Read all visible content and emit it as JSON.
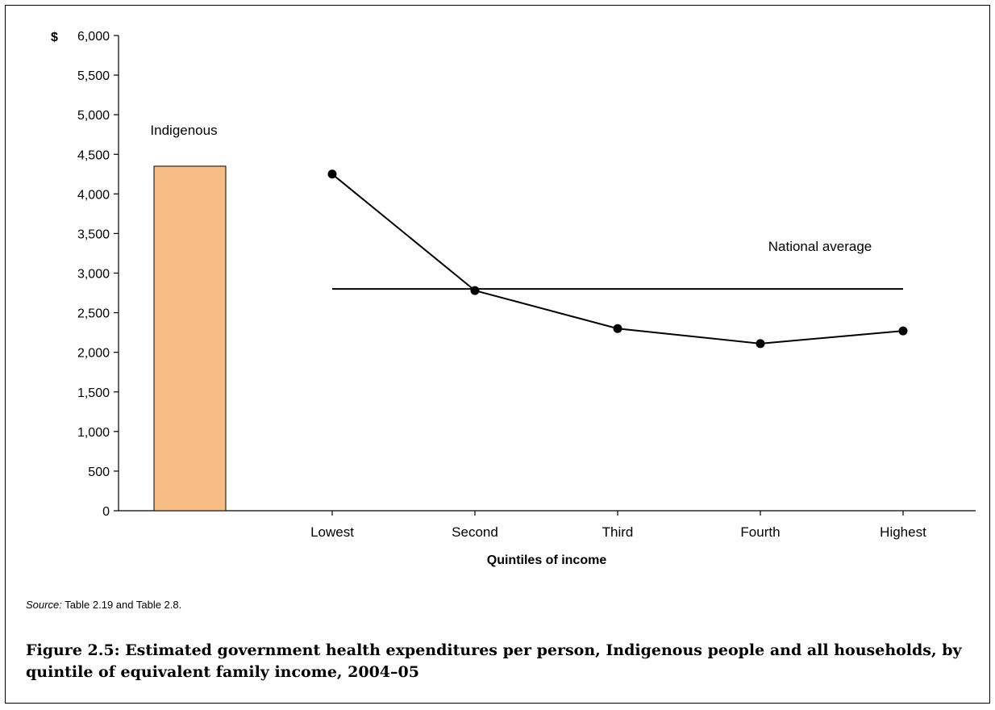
{
  "chart_data": {
    "type": "bar+line",
    "y_unit": "$",
    "ylim": [
      0,
      6000
    ],
    "ytick_step": 500,
    "yticks": [
      "0",
      "500",
      "1,000",
      "1,500",
      "2,000",
      "2,500",
      "3,000",
      "3,500",
      "4,000",
      "4,500",
      "5,000",
      "5,500",
      "6,000"
    ],
    "xlabel": "Quintiles of income",
    "categories": [
      "Lowest",
      "Second",
      "Third",
      "Fourth",
      "Highest"
    ],
    "bar": {
      "label": "Indigenous",
      "value": 4350,
      "color": "#f7bd84"
    },
    "series": [
      {
        "values": [
          4250,
          2780,
          2300,
          2110,
          2270
        ],
        "color": "#000000"
      }
    ],
    "reference_line": {
      "label": "National average",
      "value": 2800
    },
    "grid": false
  },
  "source": {
    "prefix": "Source:",
    "text": " Table 2.19 and Table 2.8."
  },
  "caption": "Figure 2.5: Estimated government health expenditures per person, Indigenous people and all households, by quintile of equivalent family income, 2004–05"
}
